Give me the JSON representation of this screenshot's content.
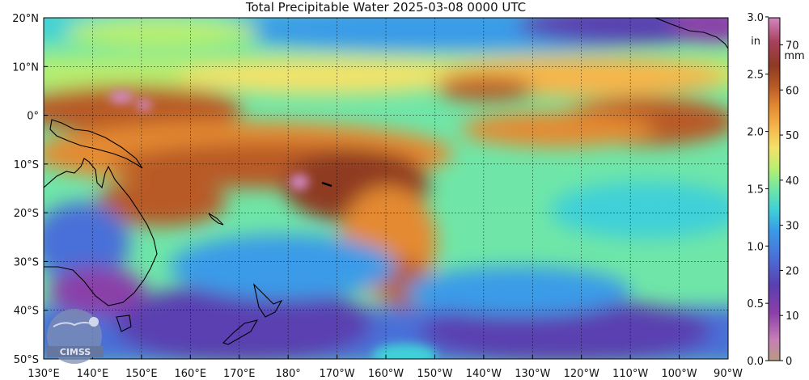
{
  "title": "Total Precipitable Water  2025-03-08 0000 UTC",
  "logo": {
    "text": "CIMSS"
  },
  "map": {
    "lon_range": [
      130,
      270
    ],
    "lat_range": [
      -50,
      20
    ],
    "lon_ticks": [
      {
        "value": 130,
        "label": "130°E"
      },
      {
        "value": 140,
        "label": "140°E"
      },
      {
        "value": 150,
        "label": "150°E"
      },
      {
        "value": 160,
        "label": "160°E"
      },
      {
        "value": 170,
        "label": "170°E"
      },
      {
        "value": 180,
        "label": "180°"
      },
      {
        "value": 190,
        "label": "170°W"
      },
      {
        "value": 200,
        "label": "160°W"
      },
      {
        "value": 210,
        "label": "150°W"
      },
      {
        "value": 220,
        "label": "140°W"
      },
      {
        "value": 230,
        "label": "130°W"
      },
      {
        "value": 240,
        "label": "120°W"
      },
      {
        "value": 250,
        "label": "110°W"
      },
      {
        "value": 260,
        "label": "100°W"
      },
      {
        "value": 270,
        "label": "90°W"
      }
    ],
    "lat_ticks": [
      {
        "value": 20,
        "label": "20°N"
      },
      {
        "value": 10,
        "label": "10°N"
      },
      {
        "value": 0,
        "label": "0°"
      },
      {
        "value": -10,
        "label": "10°S"
      },
      {
        "value": -20,
        "label": "20°S"
      },
      {
        "value": -30,
        "label": "30°S"
      },
      {
        "value": -40,
        "label": "40°S"
      },
      {
        "value": -50,
        "label": "50°S"
      }
    ],
    "grid": true
  },
  "colorbar": {
    "mm_unit": "mm",
    "in_unit": "in",
    "mm_range": [
      0,
      76
    ],
    "mm_ticks": [
      {
        "value": 0,
        "label": "0"
      },
      {
        "value": 10,
        "label": "10"
      },
      {
        "value": 20,
        "label": "20"
      },
      {
        "value": 30,
        "label": "30"
      },
      {
        "value": 40,
        "label": "40"
      },
      {
        "value": 50,
        "label": "50"
      },
      {
        "value": 60,
        "label": "60"
      },
      {
        "value": 70,
        "label": "70"
      }
    ],
    "in_ticks": [
      {
        "value": 0.0,
        "label": "0.0"
      },
      {
        "value": 0.5,
        "label": "0.5"
      },
      {
        "value": 1.0,
        "label": "1.0"
      },
      {
        "value": 1.5,
        "label": "1.5"
      },
      {
        "value": 2.0,
        "label": "2.0"
      },
      {
        "value": 2.5,
        "label": "2.5"
      },
      {
        "value": 3.0,
        "label": "3.0"
      }
    ],
    "colors": [
      "#b79a80",
      "#c77fb6",
      "#8a3fa8",
      "#5a3fb0",
      "#4a6fd8",
      "#3a9be8",
      "#3fd0d8",
      "#6fe6a8",
      "#b8ef70",
      "#f3e26a",
      "#f6b64c",
      "#e48a32",
      "#b85a26",
      "#8e3a22",
      "#a8405e",
      "#d287c2"
    ]
  }
}
